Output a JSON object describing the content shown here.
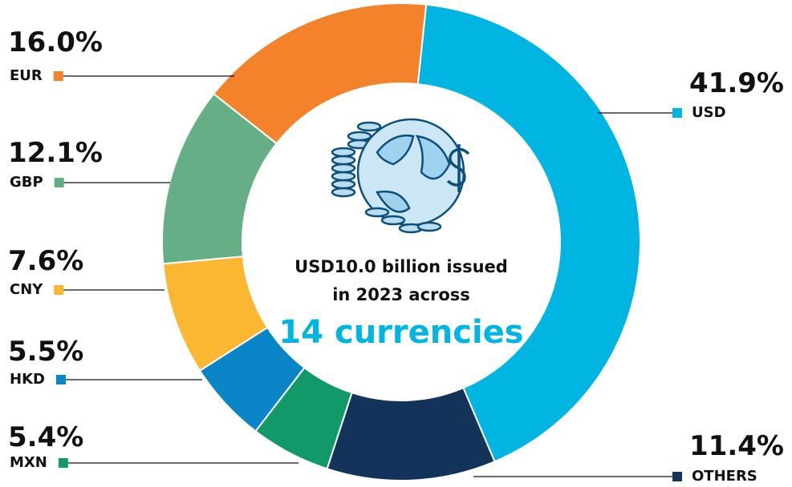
{
  "chart_data": {
    "type": "pie",
    "categories": [
      "USD",
      "OTHERS",
      "MXN",
      "HKD",
      "CNY",
      "GBP",
      "EUR"
    ],
    "values": [
      41.9,
      11.4,
      5.4,
      5.5,
      7.6,
      12.1,
      16.0
    ],
    "value_labels": [
      "41.9%",
      "11.4%",
      "5.4%",
      "5.5%",
      "7.6%",
      "12.1%",
      "16.0%"
    ],
    "colors": [
      "#00b5e2",
      "#13335a",
      "#12996a",
      "#0a85c8",
      "#fbb731",
      "#66ae86",
      "#f3822b"
    ],
    "center_text": [
      "USD10.0 billion issued",
      "in 2023 across"
    ],
    "center_highlight": "14 currencies"
  }
}
